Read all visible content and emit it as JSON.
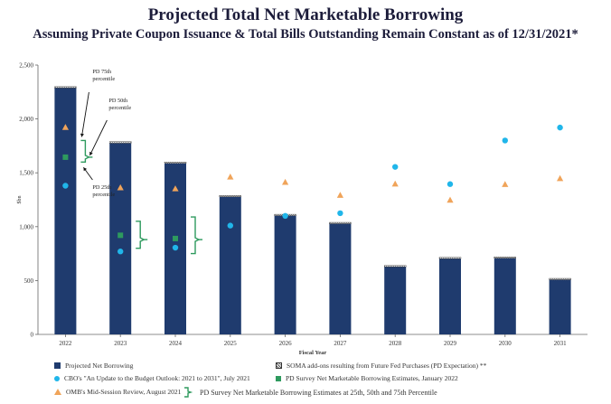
{
  "colors": {
    "bar": "#1f3b6e",
    "cbo": "#20b6ea",
    "survey": "#2e9a5e",
    "omb": "#f0a45a",
    "brace": "#2e9a5e"
  },
  "chart_data": {
    "type": "bar",
    "title": "Projected Total Net Marketable Borrowing",
    "subtitle": "Assuming Private Coupon Issuance & Total Bills Outstanding Remain Constant as of 12/31/2021*",
    "xlabel": "Fiscal Year",
    "ylabel": "$bn",
    "ylim": [
      0,
      2500
    ],
    "yticks": [
      0,
      500,
      1000,
      1500,
      2000,
      2500
    ],
    "ytick_labels": [
      "0",
      "500",
      "1,000",
      "1,500",
      "2,000",
      "2,500"
    ],
    "categories": [
      "2022",
      "2023",
      "2024",
      "2025",
      "2026",
      "2027",
      "2028",
      "2029",
      "2030",
      "2031"
    ],
    "series": [
      {
        "name": "Projected Net Borrowing",
        "type": "bar",
        "values": [
          2290,
          1775,
          1590,
          1280,
          1105,
          1035,
          635,
          710,
          715,
          515
        ]
      },
      {
        "name": "SOMA add-ons resulting from Future Fed Purchases (PD Expectation) **",
        "type": "bar-stack",
        "values": [
          10,
          15,
          10,
          10,
          10,
          5,
          5,
          5,
          5,
          5
        ]
      },
      {
        "name": "CBO's \"An Update to the Budget Outlook: 2021 to 2031\", July 2021",
        "type": "scatter",
        "values": [
          1380,
          770,
          805,
          1010,
          1100,
          1125,
          1555,
          1395,
          1800,
          1920
        ]
      },
      {
        "name": "PD Survey Net Marketable Borrowing Estimates, January 2022",
        "type": "scatter",
        "values": [
          1645,
          920,
          890,
          null,
          null,
          null,
          null,
          null,
          null,
          null
        ]
      },
      {
        "name": "OMB's Mid-Session Review, August 2021",
        "type": "scatter",
        "values": [
          1920,
          1360,
          1350,
          1460,
          1410,
          1290,
          1395,
          1245,
          1390,
          1445
        ]
      }
    ],
    "percentile_range": {
      "name": "PD Survey Net Marketable Borrowing Estimates at 25th, 50th and 75th Percentile",
      "categories": [
        "2022",
        "2023",
        "2024"
      ],
      "p25": [
        1600,
        800,
        750
      ],
      "p50": [
        1645,
        880,
        880
      ],
      "p75": [
        1800,
        1050,
        1090
      ]
    },
    "annotations": [
      {
        "text": "PD 75th percentile",
        "category": "2022"
      },
      {
        "text": "PD 50th percentile",
        "category": "2022"
      },
      {
        "text": "PD 25th percentile",
        "category": "2022"
      }
    ],
    "grid": false,
    "legend_position": "bottom"
  }
}
